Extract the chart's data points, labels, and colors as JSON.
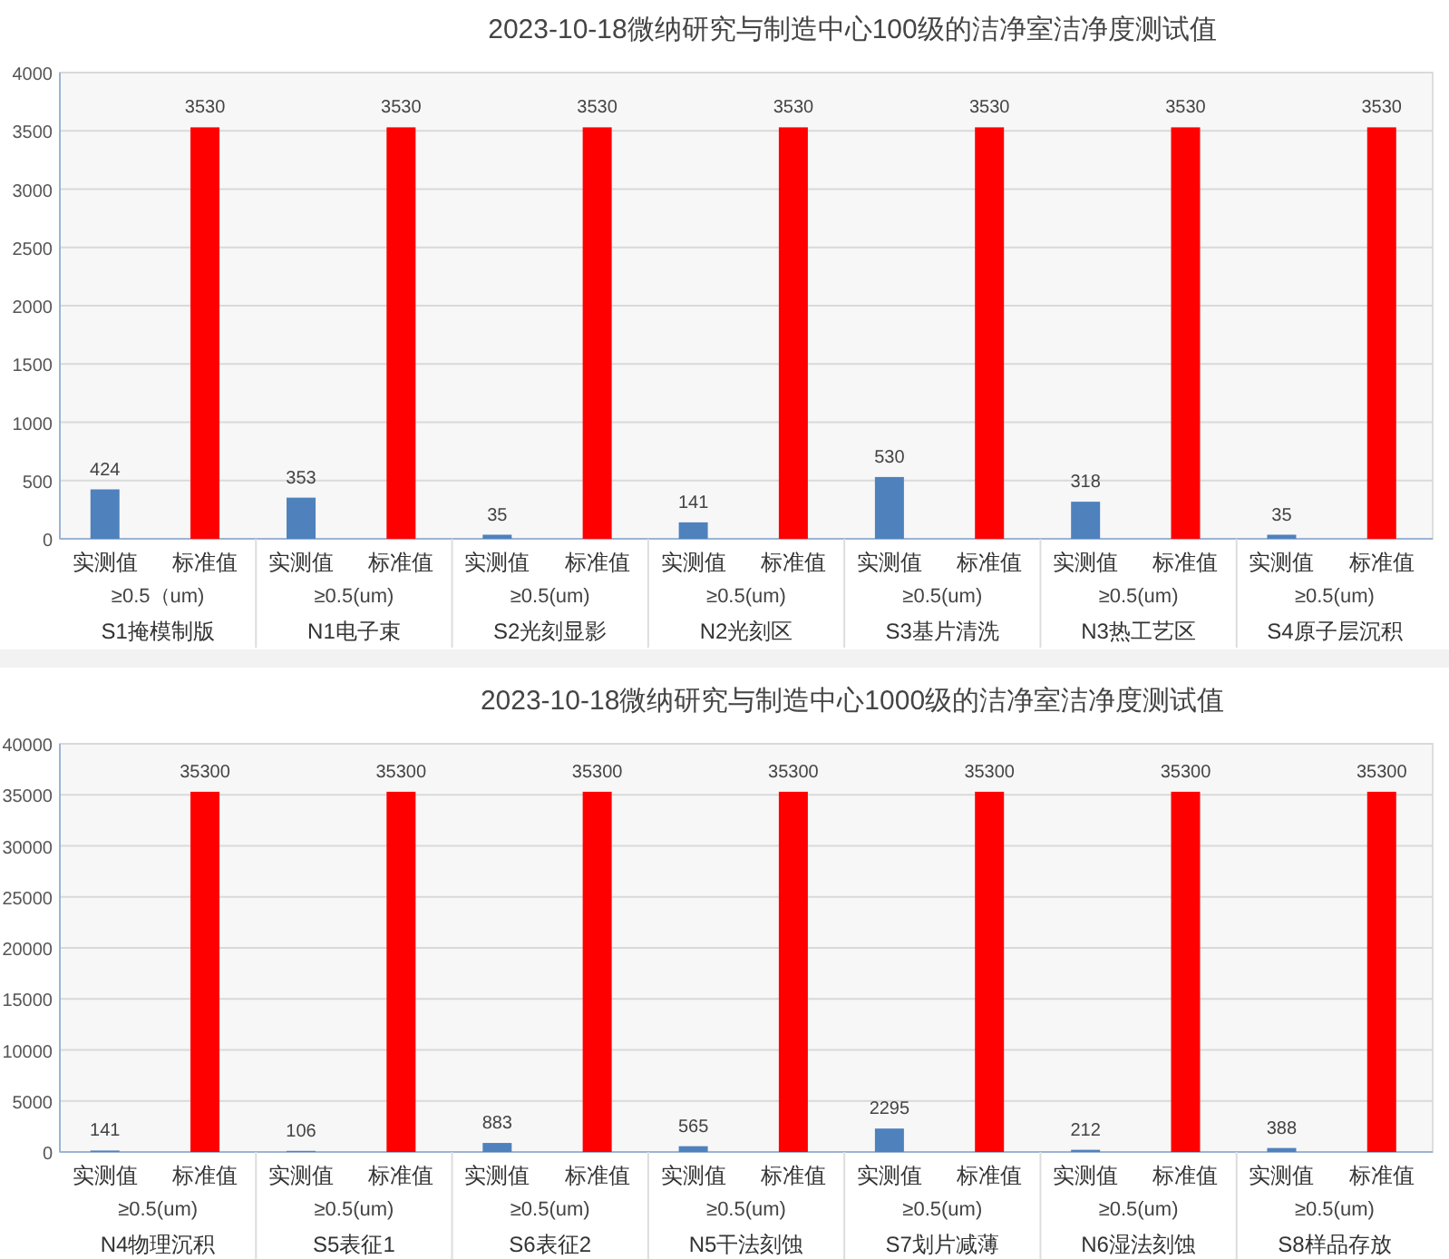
{
  "chart_data": [
    {
      "type": "bar",
      "title": "2023-10-18微纳研究与制造中心100级的洁净室洁净度测试值",
      "categories": [
        "S1掩模制版",
        "N1电子束",
        "S2光刻显影",
        "N2光刻区",
        "S3基片清洗",
        "N3热工艺区",
        "S4原子层沉积"
      ],
      "series": [
        {
          "name": "实测值",
          "color": "#4f81bd",
          "values": [
            424,
            353,
            35,
            141,
            530,
            318,
            35
          ]
        },
        {
          "name": "标准值",
          "color": "#ff0000",
          "values": [
            3530,
            3530,
            3530,
            3530,
            3530,
            3530,
            3530
          ]
        }
      ],
      "annotations": [
        "≥0.5（um)",
        "≥0.5(um)",
        "≥0.5(um)",
        "≥0.5(um)",
        "≥0.5(um)",
        "≥0.5(um)",
        "≥0.5(um)"
      ],
      "ylim": [
        0,
        4000
      ],
      "yticks": [
        0,
        500,
        1000,
        1500,
        2000,
        2500,
        3000,
        3500,
        4000
      ],
      "grid": "y",
      "data_labels": true
    },
    {
      "type": "bar",
      "title": "2023-10-18微纳研究与制造中心1000级的洁净室洁净度测试值",
      "categories": [
        "N4物理沉积",
        "S5表征1",
        "S6表征2",
        "N5干法刻蚀",
        "S7划片减薄",
        "N6湿法刻蚀",
        "S8样品存放"
      ],
      "series": [
        {
          "name": "实测值",
          "color": "#4f81bd",
          "values": [
            141,
            106,
            883,
            565,
            2295,
            212,
            388
          ]
        },
        {
          "name": "标准值",
          "color": "#ff0000",
          "values": [
            35300,
            35300,
            35300,
            35300,
            35300,
            35300,
            35300
          ]
        }
      ],
      "annotations": [
        "≥0.5(um)",
        "≥0.5(um)",
        "≥0.5(um)",
        "≥0.5(um)",
        "≥0.5(um)",
        "≥0.5(um)",
        "≥0.5(um)"
      ],
      "ylim": [
        0,
        40000
      ],
      "yticks": [
        0,
        5000,
        10000,
        15000,
        20000,
        25000,
        30000,
        35000,
        40000
      ],
      "grid": "y",
      "data_labels": true
    }
  ]
}
